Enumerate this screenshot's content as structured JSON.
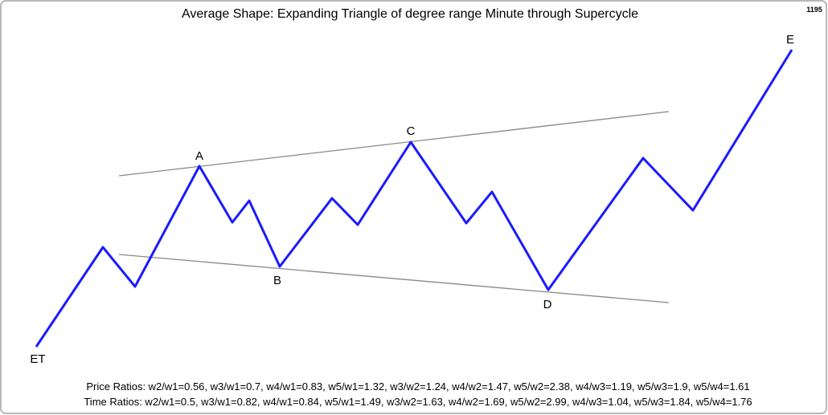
{
  "title": "Average Shape: Expanding Triangle of degree range Minute through Supercycle",
  "corner_label": "1195",
  "wave_labels": {
    "start": "ET",
    "a": "A",
    "b": "B",
    "c": "C",
    "d": "D",
    "e": "E"
  },
  "price_ratios": "Price Ratios: w2/w1=0.56, w3/w1=0.7, w4/w1=0.83, w5/w1=1.32, w3/w2=1.24, w4/w2=1.47, w5/w2=2.38, w4/w3=1.19, w5/w3=1.9, w5/w4=1.61",
  "time_ratios": "Time Ratios: w2/w1=0.5, w3/w1=0.82, w4/w1=0.84, w5/w1=1.49, w3/w2=1.63, w4/w2=1.69, w5/w2=2.99, w4/w3=1.04, w5/w3=1.84, w5/w4=1.76"
}
